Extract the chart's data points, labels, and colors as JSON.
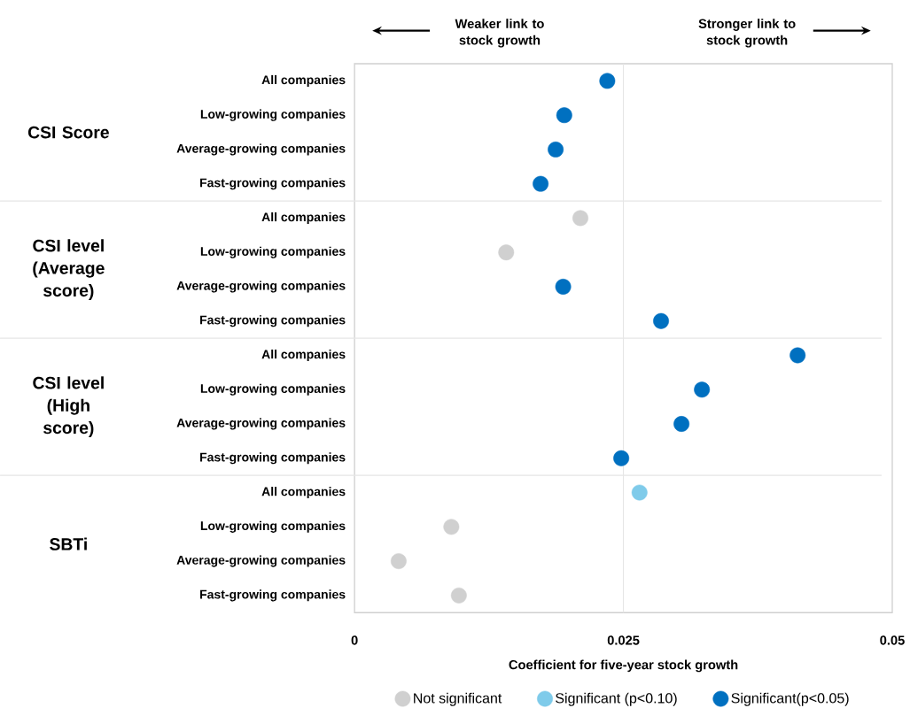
{
  "chart_data": {
    "type": "scatter",
    "orientation": "horizontal",
    "xlabel": "Coefficient for five-year stock growth",
    "categories": [
      "All companies",
      "Low-growing companies",
      "Average-growing companies",
      "Fast-growing companies",
      "All companies",
      "Low-growing companies",
      "Average-growing companies",
      "Fast-growing companies",
      "All companies",
      "Low-growing companies",
      "Average-growing companies",
      "Fast-growing companies",
      "All companies",
      "Low-growing companies",
      "Average-growing companies",
      "Fast-growing companies"
    ],
    "series": [
      {
        "name": "Not significant",
        "color": "#d0d0d0",
        "values": [
          null,
          null,
          null,
          null,
          0.021,
          0.0141,
          null,
          null,
          null,
          null,
          null,
          null,
          null,
          0.009,
          0.0041,
          0.0097
        ]
      },
      {
        "name": "Significant (p<0.10)",
        "color": "#7fcbea",
        "values": [
          null,
          null,
          null,
          null,
          null,
          null,
          null,
          null,
          null,
          null,
          null,
          null,
          0.0265,
          null,
          null,
          null
        ]
      },
      {
        "name": "Significant(p<0.05)",
        "color": "#0070c0",
        "values": [
          0.0235,
          0.0195,
          0.0187,
          0.0173,
          null,
          null,
          0.0194,
          0.0285,
          0.0412,
          0.0323,
          0.0304,
          0.0248,
          null,
          null,
          null,
          null
        ]
      }
    ],
    "xlim": [
      0,
      0.05
    ],
    "xticks": [
      0,
      0.025,
      0.05
    ],
    "ref_lines": [
      {
        "axis": "x",
        "value": 0.025,
        "color": "#e6e6e6"
      }
    ],
    "legend": "bottom",
    "annotations": [
      "CSI Score",
      "CSI level (Average score)",
      "CSI level (High score)",
      "SBTi",
      "Weaker link to stock growth",
      "Stronger link to stock growth"
    ]
  }
}
